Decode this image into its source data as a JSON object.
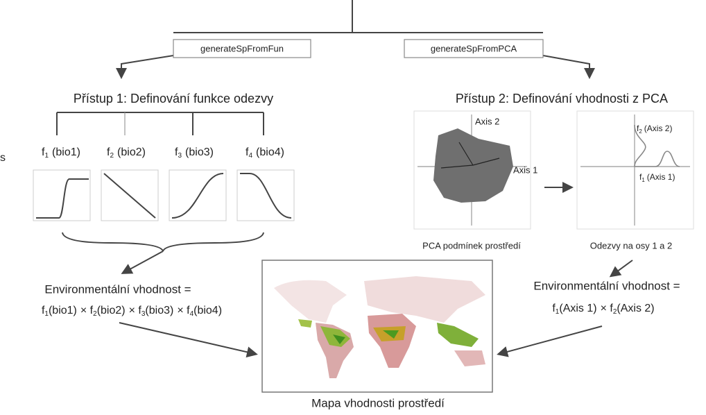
{
  "edge_fragment": "s",
  "top_methods": [
    "generateSpFromFun",
    "generateSpFromPCA"
  ],
  "approach1": {
    "title": "Přístup 1: Definování funkce odezvy",
    "functions": [
      {
        "name": "f",
        "index": "1",
        "variable": "(bio1)"
      },
      {
        "name": "f",
        "index": "2",
        "variable": "(bio2)"
      },
      {
        "name": "f",
        "index": "3",
        "variable": "(bio3)"
      },
      {
        "name": "f",
        "index": "4",
        "variable": "(bio4)"
      }
    ],
    "result_label": "Environmentální vhodnost =",
    "formula": {
      "operator": "×",
      "terms": [
        {
          "name": "f",
          "index": "1",
          "variable": "(bio1)"
        },
        {
          "name": "f",
          "index": "2",
          "variable": "(bio2)"
        },
        {
          "name": "f",
          "index": "3",
          "variable": "(bio3)"
        },
        {
          "name": "f",
          "index": "4",
          "variable": "(bio4)"
        }
      ]
    }
  },
  "approach2": {
    "title": "Přístup 2: Definování vhodnosti z PCA",
    "pca_axes": [
      "Axis 2",
      "Axis 1"
    ],
    "responses": [
      {
        "name": "f",
        "index": "2",
        "variable": "(Axis 2)"
      },
      {
        "name": "f",
        "index": "1",
        "variable": "(Axis 1)"
      }
    ],
    "pca_caption": "PCA podmínek prostředí",
    "response_caption": "Odezvy na osy 1 a 2",
    "result_label": "Environmentální vhodnost =",
    "formula": {
      "operator": "×",
      "terms": [
        {
          "name": "f",
          "index": "1",
          "variable": "(Axis 1)"
        },
        {
          "name": "f",
          "index": "2",
          "variable": "(Axis 2)"
        }
      ]
    }
  },
  "map_caption": "Mapa vhodnosti prostředí"
}
